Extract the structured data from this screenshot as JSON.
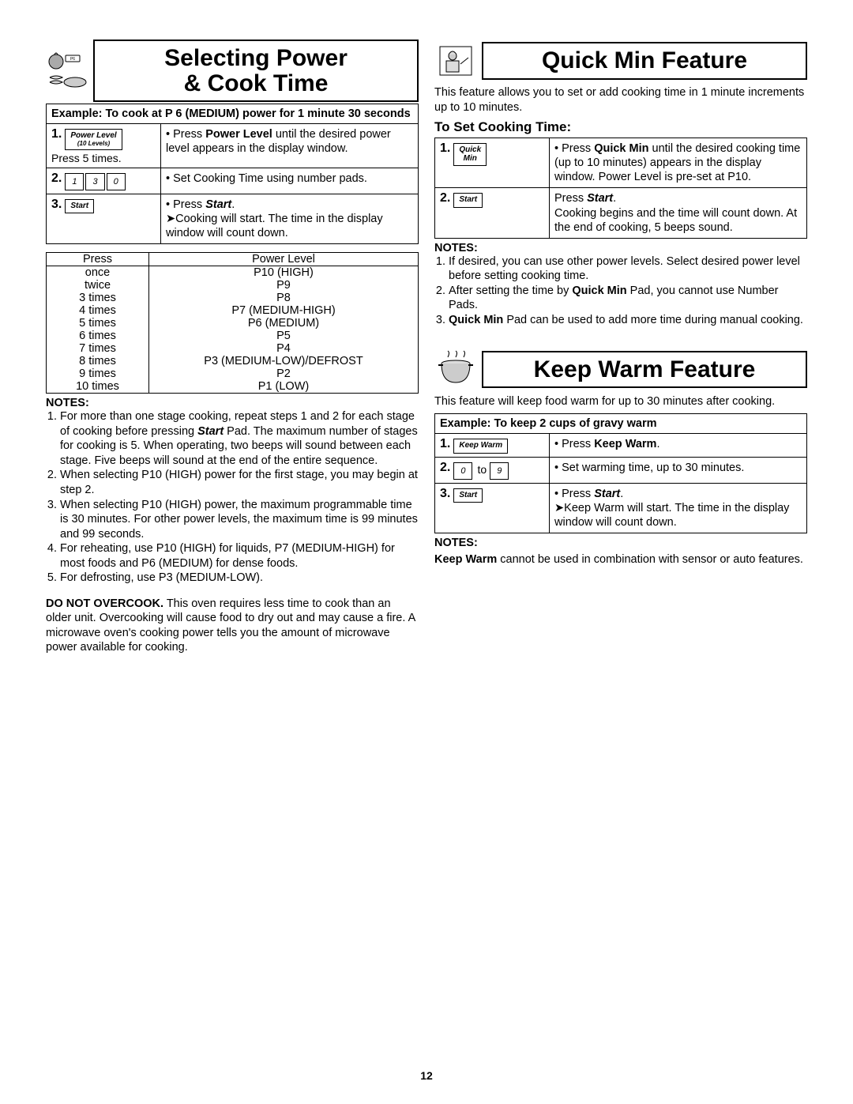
{
  "pageNumber": "12",
  "left": {
    "title": "Selecting Power\n& Cook Time",
    "iconName": "tomato-bacon-dish-icon",
    "exampleHeader": "Example: To cook at P 6 (MEDIUM) power for 1 minute 30 seconds",
    "steps": [
      {
        "n": "1.",
        "btn": {
          "label": "Power Level",
          "sub": "(10 Levels)"
        },
        "under": "Press 5 times.",
        "instr": "• Press <b>Power Level</b> until the desired power level appears in the display window."
      },
      {
        "n": "2.",
        "pads": [
          "1",
          "3",
          "0"
        ],
        "instr": "• Set Cooking Time using number pads."
      },
      {
        "n": "3.",
        "btn": {
          "label": "Start"
        },
        "instr": "• Press <b><i>Start</i></b>.<br>➤Cooking will start. The time in the display window will count down."
      }
    ],
    "plTable": {
      "head": [
        "Press",
        "Power Level"
      ],
      "rows": [
        [
          "once",
          "P10 (HIGH)"
        ],
        [
          "twice",
          "P9"
        ],
        [
          "3 times",
          "P8"
        ],
        [
          "4 times",
          "P7 (MEDIUM-HIGH)"
        ],
        [
          "5 times",
          "P6 (MEDIUM)"
        ],
        [
          "6 times",
          "P5"
        ],
        [
          "7 times",
          "P4"
        ],
        [
          "8 times",
          "P3 (MEDIUM-LOW)/DEFROST"
        ],
        [
          "9 times",
          "P2"
        ],
        [
          "10 times",
          "P1 (LOW)"
        ]
      ]
    },
    "notesHd": "NOTES:",
    "notes": [
      "For more than one stage cooking, repeat steps 1 and 2 for each stage of cooking before pressing <b><i>Start</i></b> Pad. The maximum number of stages for cooking is 5. When operating, two beeps will sound between each stage. Five beeps will sound at the end of the entire sequence.",
      "When selecting P10 (HIGH) power for the first stage, you may begin at step 2.",
      "When selecting P10 (HIGH) power, the maximum programmable time is 30 minutes. For other power levels, the maximum time is 99 minutes and 99 seconds.",
      "For reheating, use P10 (HIGH) for liquids, P7 (MEDIUM-HIGH) for most foods and P6 (MEDIUM) for dense foods.",
      "For defrosting, use P3 (MEDIUM-LOW)."
    ],
    "overcook": "<b>DO NOT OVERCOOK.</b> This oven requires less time to cook than an older unit. Overcooking will cause food to dry out and may cause a fire. A microwave oven's cooking power tells you the amount of microwave power available for cooking."
  },
  "rightA": {
    "title": "Quick Min Feature",
    "iconName": "chef-icon",
    "intro": "This feature allows you to set or add cooking time in 1 minute increments up to 10 minutes.",
    "subhead": "To Set Cooking Time:",
    "steps": [
      {
        "n": "1.",
        "btn": {
          "label": "Quick\nMin"
        },
        "instr": "• Press <b>Quick Min</b> until the desired cooking time (up to 10 minutes) appears in the display window. Power Level is pre-set at P10."
      },
      {
        "n": "2.",
        "btn": {
          "label": "Start"
        },
        "instr": "Press <b><i>Start</i></b>.<br>Cooking begins and the time will count down. At the end of cooking, 5 beeps sound."
      }
    ],
    "notesHd": "NOTES:",
    "notes": [
      "If desired, you can use other power levels. Select desired power level before setting cooking time.",
      "After setting the time by <b>Quick Min</b> Pad, you cannot use Number Pads.",
      "<b>Quick Min</b> Pad can be used to add more time during manual cooking."
    ]
  },
  "rightB": {
    "title": "Keep Warm Feature",
    "iconName": "pot-warm-icon",
    "intro": "This feature will keep food warm for up to 30 minutes after cooking.",
    "exampleHeader": "Example: To keep 2 cups of gravy warm",
    "steps": [
      {
        "n": "1.",
        "btn": {
          "label": "Keep Warm"
        },
        "instr": "• Press <b>Keep Warm</b>."
      },
      {
        "n": "2.",
        "pads": [
          "0",
          "to",
          "9"
        ],
        "instr": "• Set warming time, up to 30 minutes."
      },
      {
        "n": "3.",
        "btn": {
          "label": "Start"
        },
        "instr": "• Press <b><i>Start</i></b>.<br>➤Keep Warm will start. The time in the display window will count down."
      }
    ],
    "notesHd": "NOTES:",
    "notesPara": "<b>Keep Warm</b> cannot be used in combination with sensor or auto features."
  }
}
